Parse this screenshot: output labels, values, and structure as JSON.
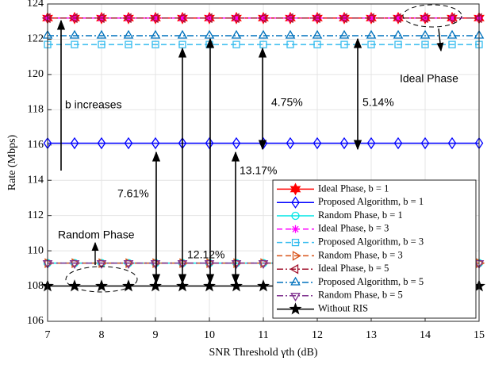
{
  "chart_data": {
    "type": "line",
    "xlabel": "SNR Threshold γth (dB)",
    "ylabel": "Rate (Mbps)",
    "x": [
      7,
      7.5,
      8,
      8.5,
      9,
      9.5,
      10,
      10.5,
      11,
      11.5,
      12,
      12.5,
      13,
      13.5,
      14,
      14.5,
      15
    ],
    "xlim": [
      7,
      15
    ],
    "xticks": [
      7,
      8,
      9,
      10,
      11,
      12,
      13,
      14,
      15
    ],
    "ylim": [
      106,
      124
    ],
    "yticks": [
      106,
      108,
      110,
      112,
      114,
      116,
      118,
      120,
      122,
      124
    ],
    "grid": true,
    "legend": "lower right",
    "series": [
      {
        "name": "Ideal Phase, b = 1",
        "color": "#ff0000",
        "marker": "hexagram",
        "linestyle": "solid",
        "values": [
          123.2,
          123.2,
          123.2,
          123.2,
          123.2,
          123.2,
          123.2,
          123.2,
          123.2,
          123.2,
          123.2,
          123.2,
          123.2,
          123.2,
          123.2,
          123.2,
          123.2
        ]
      },
      {
        "name": "Proposed Algorithm, b = 1",
        "color": "#0000ff",
        "marker": "diamond",
        "linestyle": "solid",
        "values": [
          116.1,
          116.1,
          116.1,
          116.1,
          116.1,
          116.1,
          116.1,
          116.1,
          116.1,
          116.1,
          116.1,
          116.1,
          116.1,
          116.1,
          116.1,
          116.1,
          116.1
        ]
      },
      {
        "name": "Random Phase, b = 1",
        "color": "#00e5e5",
        "marker": "circle",
        "linestyle": "solid",
        "values": [
          109.3,
          109.3,
          109.3,
          109.3,
          109.3,
          109.3,
          109.3,
          109.3,
          109.3,
          109.3,
          109.3,
          109.3,
          109.3,
          109.3,
          109.3,
          109.3,
          109.3
        ]
      },
      {
        "name": "Ideal Phase, b = 3",
        "color": "#ff00ff",
        "marker": "asterisk",
        "linestyle": "dashed",
        "values": [
          123.2,
          123.2,
          123.2,
          123.2,
          123.2,
          123.2,
          123.2,
          123.2,
          123.2,
          123.2,
          123.2,
          123.2,
          123.2,
          123.2,
          123.2,
          123.2,
          123.2
        ]
      },
      {
        "name": "Proposed Algorithm, b = 3",
        "color": "#33bbee",
        "marker": "square",
        "linestyle": "dashed",
        "values": [
          121.7,
          121.7,
          121.7,
          121.7,
          121.7,
          121.7,
          121.7,
          121.7,
          121.7,
          121.7,
          121.7,
          121.7,
          121.7,
          121.7,
          121.7,
          121.7,
          121.7
        ]
      },
      {
        "name": "Random Phase, b = 3",
        "color": "#d95319",
        "marker": "triangle-right",
        "linestyle": "dashed",
        "values": [
          109.3,
          109.3,
          109.3,
          109.3,
          109.3,
          109.3,
          109.3,
          109.3,
          109.3,
          109.3,
          109.3,
          109.3,
          109.3,
          109.3,
          109.3,
          109.3,
          109.3
        ]
      },
      {
        "name": "Ideal Phase, b = 5",
        "color": "#a2142f",
        "marker": "triangle-left",
        "linestyle": "dashdot",
        "values": [
          123.2,
          123.2,
          123.2,
          123.2,
          123.2,
          123.2,
          123.2,
          123.2,
          123.2,
          123.2,
          123.2,
          123.2,
          123.2,
          123.2,
          123.2,
          123.2,
          123.2
        ]
      },
      {
        "name": "Proposed Algorithm, b = 5",
        "color": "#0072bd",
        "marker": "triangle-up",
        "linestyle": "dashdot",
        "values": [
          122.2,
          122.2,
          122.2,
          122.2,
          122.2,
          122.2,
          122.2,
          122.2,
          122.2,
          122.2,
          122.2,
          122.2,
          122.2,
          122.2,
          122.2,
          122.2,
          122.2
        ]
      },
      {
        "name": "Random Phase, b = 5",
        "color": "#7e2f8e",
        "marker": "triangle-down",
        "linestyle": "dashdot",
        "values": [
          109.3,
          109.3,
          109.3,
          109.3,
          109.3,
          109.3,
          109.3,
          109.3,
          109.3,
          109.3,
          109.3,
          109.3,
          109.3,
          109.3,
          109.3,
          109.3,
          109.3
        ]
      },
      {
        "name": "Without RIS",
        "color": "#000000",
        "marker": "star",
        "linestyle": "solid",
        "values": [
          108.0,
          108.0,
          108.0,
          108.0,
          108.0,
          108.0,
          108.0,
          108.0,
          108.0,
          108.0,
          108.0,
          108.0,
          108.0,
          108.0,
          108.0,
          108.0,
          108.0
        ]
      }
    ],
    "annotations": [
      "b increases",
      "Ideal Phase",
      "Random Phase",
      "4.75%",
      "5.14%",
      "13.17%",
      "7.61%",
      "12.12%"
    ]
  }
}
